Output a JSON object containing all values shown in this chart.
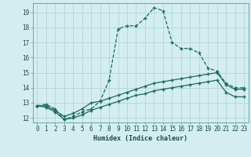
{
  "xlabel": "Humidex (Indice chaleur)",
  "bg_color": "#d4eef0",
  "grid_color": "#b8d8dc",
  "line_color": "#1a6b5a",
  "xlim": [
    -0.5,
    23.5
  ],
  "ylim": [
    11.7,
    19.6
  ],
  "yticks": [
    12,
    13,
    14,
    15,
    16,
    17,
    18,
    19
  ],
  "xticks": [
    0,
    1,
    2,
    3,
    4,
    5,
    6,
    7,
    8,
    9,
    10,
    11,
    12,
    13,
    14,
    15,
    16,
    17,
    18,
    19,
    20,
    21,
    22,
    23
  ],
  "series1_x": [
    0,
    1,
    2,
    3,
    4,
    5,
    6,
    7,
    8,
    9,
    10,
    11,
    12,
    13,
    14,
    15,
    16,
    17,
    18,
    19,
    20,
    21,
    22,
    23
  ],
  "series1_y": [
    12.8,
    12.9,
    12.6,
    11.9,
    12.1,
    12.4,
    12.6,
    13.1,
    14.5,
    17.9,
    18.1,
    18.1,
    18.6,
    19.3,
    19.1,
    17.0,
    16.6,
    16.6,
    16.3,
    15.3,
    15.1,
    14.3,
    14.0,
    14.0
  ],
  "series2_x": [
    0,
    1,
    2,
    3,
    4,
    5,
    6,
    7,
    8,
    9,
    10,
    11,
    12,
    13,
    14,
    15,
    16,
    17,
    18,
    19,
    20,
    21,
    22,
    23
  ],
  "series2_y": [
    12.8,
    12.8,
    12.5,
    12.1,
    12.3,
    12.6,
    13.0,
    13.1,
    13.3,
    13.5,
    13.7,
    13.9,
    14.1,
    14.3,
    14.4,
    14.5,
    14.6,
    14.7,
    14.8,
    14.9,
    15.0,
    14.2,
    13.9,
    13.9
  ],
  "series3_x": [
    0,
    1,
    2,
    3,
    4,
    5,
    6,
    7,
    8,
    9,
    10,
    11,
    12,
    13,
    14,
    15,
    16,
    17,
    18,
    19,
    20,
    21,
    22,
    23
  ],
  "series3_y": [
    12.8,
    12.7,
    12.4,
    11.9,
    12.0,
    12.2,
    12.5,
    12.7,
    12.9,
    13.1,
    13.3,
    13.5,
    13.6,
    13.8,
    13.9,
    14.0,
    14.1,
    14.2,
    14.3,
    14.4,
    14.5,
    13.7,
    13.4,
    13.4
  ],
  "xlabel_fontsize": 6,
  "tick_fontsize": 5.5
}
